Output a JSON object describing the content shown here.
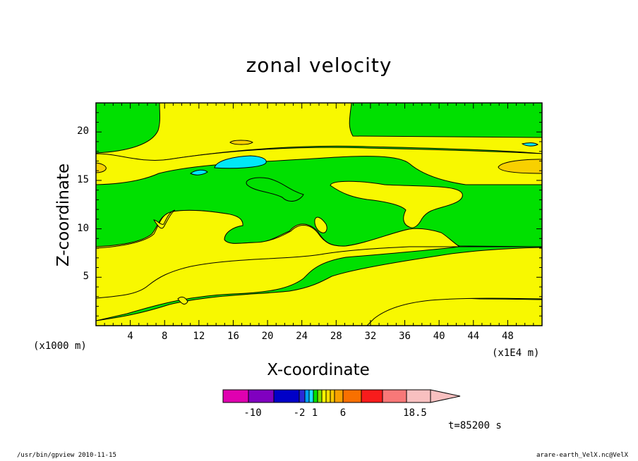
{
  "chart_data": {
    "type": "heatmap",
    "title": "zonal velocity",
    "xlabel": "X-coordinate",
    "ylabel": "Z-coordinate",
    "x_unit_label": "(x1000 m)",
    "x_scale_label": "(x1E4 m)",
    "xlim": [
      0,
      52
    ],
    "ylim": [
      0,
      23
    ],
    "x_ticks": [
      "4",
      "8",
      "12",
      "16",
      "20",
      "24",
      "28",
      "32",
      "36",
      "40",
      "44",
      "48"
    ],
    "y_ticks": [
      "5",
      "10",
      "15",
      "20"
    ],
    "time_label": "t=85200 s",
    "colorbar": {
      "labels": [
        "-10",
        "-2",
        "1",
        "6",
        "18.5"
      ],
      "label_values": [
        -10,
        -2,
        1,
        6,
        18.5
      ],
      "colors": [
        "#e000b0",
        "#8000c0",
        "#0000c8",
        "#2a2ad8",
        "#00a0ff",
        "#20e0ff",
        "#00e000",
        "#80e000",
        "#f8f800",
        "#f8e000",
        "#f8c800",
        "#f8a000",
        "#f87000",
        "#f81c1c",
        "#f87878",
        "#f8c0c0"
      ]
    },
    "fill_colors": {
      "green": "#00e000",
      "yellow": "#f8f800",
      "orange": "#f8d000",
      "cyan": "#00e8f8"
    }
  },
  "footer": {
    "left": "/usr/bin/gpview   2010-11-15",
    "right": "arare-earth_VelX.nc@VelX"
  }
}
